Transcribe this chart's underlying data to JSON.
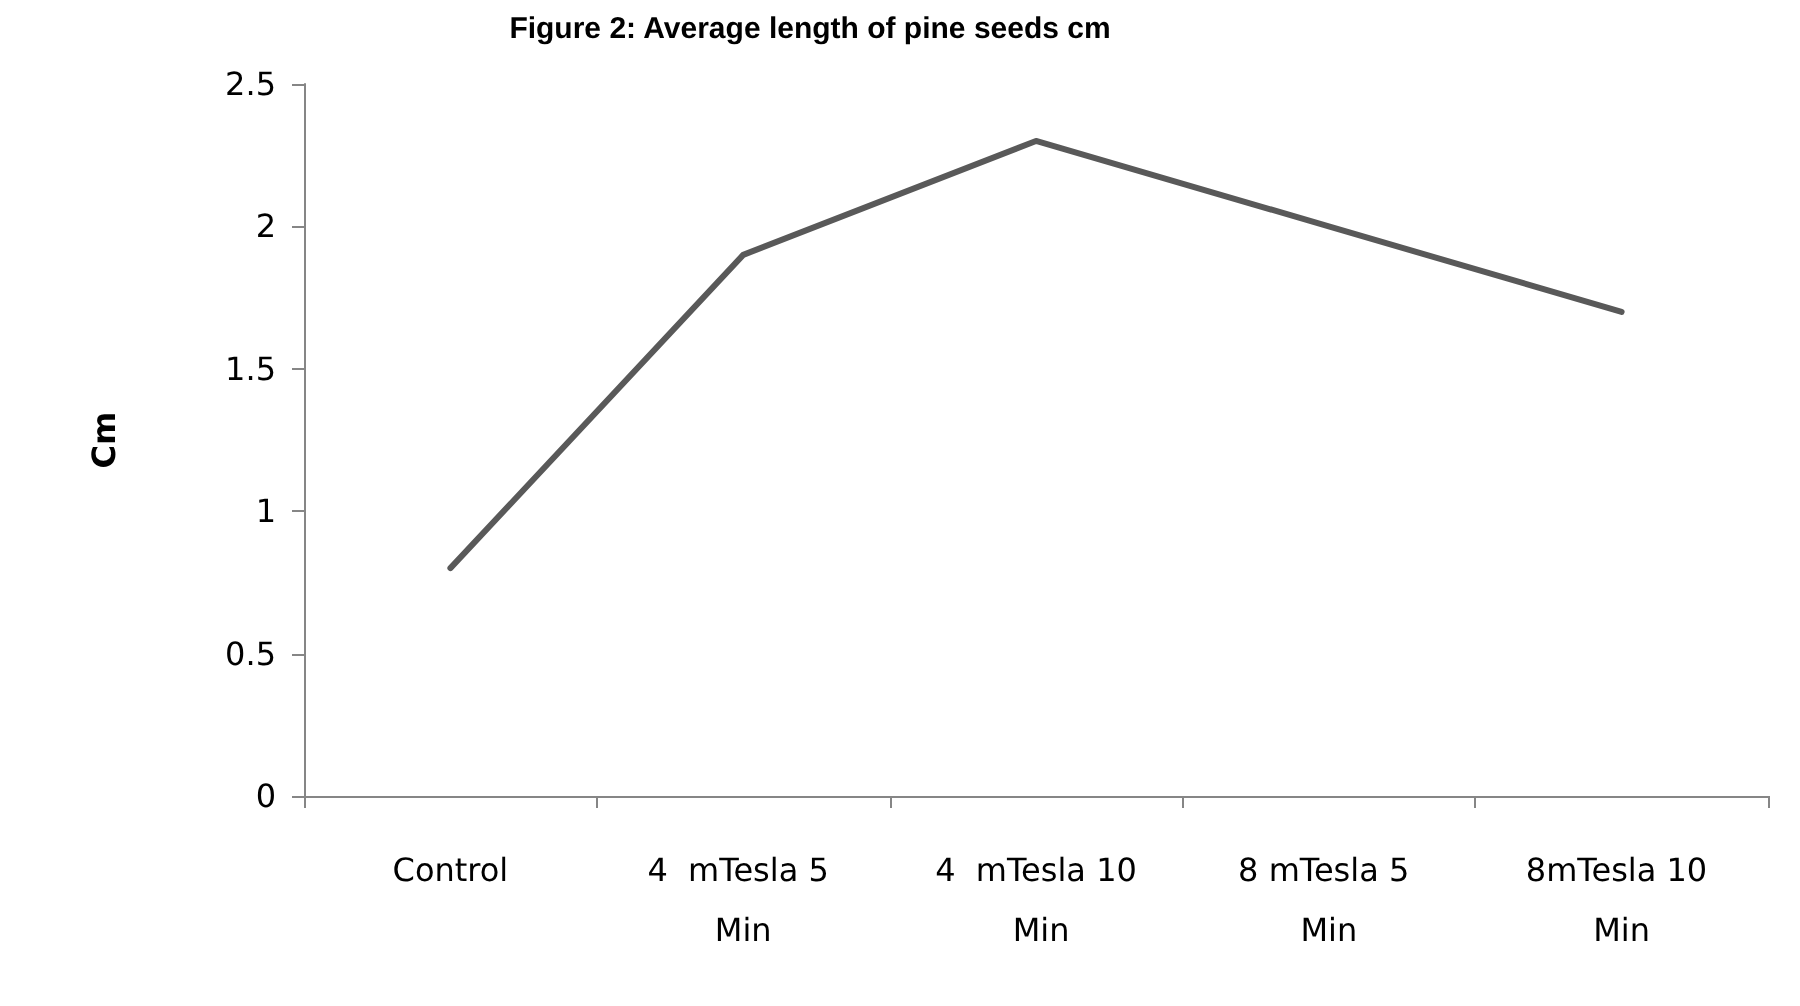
{
  "chart_data": {
    "type": "line",
    "title": "Figure 2: Average length of pine seeds cm",
    "ylabel": "Cm",
    "categories": [
      "Control",
      "4  mTesla 5 Min",
      "4  mTesla 10 Min",
      "8 mTesla 5 Min",
      "8mTesla 10 Min"
    ],
    "series": [
      {
        "color": "#595959",
        "values": [
          0.8,
          1.9,
          2.3,
          2.0,
          1.7
        ]
      }
    ],
    "ylim": [
      0,
      2.5
    ],
    "yticks": [
      0,
      0.5,
      1,
      1.5,
      2,
      2.5
    ],
    "grid": false,
    "marker": "none",
    "line_style": "solid"
  }
}
